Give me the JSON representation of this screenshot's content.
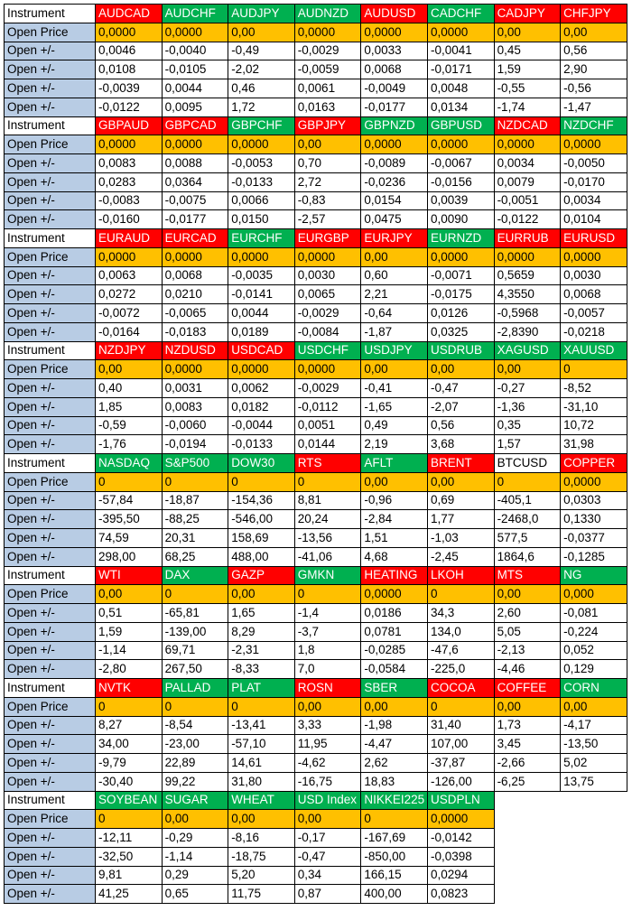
{
  "row_labels": {
    "instrument": "Instrument",
    "open_price": "Open Price",
    "open_delta": "Open +/-"
  },
  "colors": {
    "red": "#ff0000",
    "green": "#00b050",
    "white": "#ffffff",
    "label_blue": "#b8cce4",
    "price_orange": "#ffc000"
  },
  "blocks": [
    {
      "instruments": [
        {
          "name": "AUDCAD",
          "color": "red"
        },
        {
          "name": "AUDCHF",
          "color": "green"
        },
        {
          "name": "AUDJPY",
          "color": "green"
        },
        {
          "name": "AUDNZD",
          "color": "green"
        },
        {
          "name": "AUDUSD",
          "color": "red"
        },
        {
          "name": "CADCHF",
          "color": "green"
        },
        {
          "name": "CADJPY",
          "color": "red"
        },
        {
          "name": "CHFJPY",
          "color": "red"
        }
      ],
      "open_price": [
        "0,0000",
        "0,0000",
        "0,00",
        "0,0000",
        "0,0000",
        "0,0000",
        "0,00",
        "0,00"
      ],
      "deltas": [
        [
          "0,0046",
          "-0,0040",
          "-0,49",
          "-0,0029",
          "0,0033",
          "-0,0041",
          "0,45",
          "0,56"
        ],
        [
          "0,0108",
          "-0,0105",
          "-2,02",
          "-0,0059",
          "0,0068",
          "-0,0171",
          "1,59",
          "2,90"
        ],
        [
          "-0,0039",
          "0,0044",
          "0,46",
          "0,0061",
          "-0,0049",
          "0,0048",
          "-0,55",
          "-0,56"
        ],
        [
          "-0,0122",
          "0,0095",
          "1,72",
          "0,0163",
          "-0,0177",
          "0,0134",
          "-1,74",
          "-1,47"
        ]
      ]
    },
    {
      "instruments": [
        {
          "name": "GBPAUD",
          "color": "red"
        },
        {
          "name": "GBPCAD",
          "color": "red"
        },
        {
          "name": "GBPCHF",
          "color": "green"
        },
        {
          "name": "GBPJPY",
          "color": "red"
        },
        {
          "name": "GBPNZD",
          "color": "green"
        },
        {
          "name": "GBPUSD",
          "color": "green"
        },
        {
          "name": "NZDCAD",
          "color": "red"
        },
        {
          "name": "NZDCHF",
          "color": "green"
        }
      ],
      "open_price": [
        "0,0000",
        "0,0000",
        "0,0000",
        "0,00",
        "0,0000",
        "0,0000",
        "0,0000",
        "0,0000"
      ],
      "deltas": [
        [
          "0,0083",
          "0,0088",
          "-0,0053",
          "0,70",
          "-0,0089",
          "-0,0067",
          "0,0034",
          "-0,0050"
        ],
        [
          "0,0283",
          "0,0364",
          "-0,0133",
          "2,72",
          "-0,0236",
          "-0,0156",
          "0,0079",
          "-0,0170"
        ],
        [
          "-0,0083",
          "-0,0075",
          "0,0066",
          "-0,83",
          "0,0154",
          "0,0039",
          "-0,0051",
          "0,0034"
        ],
        [
          "-0,0160",
          "-0,0177",
          "0,0150",
          "-2,57",
          "0,0475",
          "0,0090",
          "-0,0122",
          "0,0104"
        ]
      ]
    },
    {
      "instruments": [
        {
          "name": "EURAUD",
          "color": "red"
        },
        {
          "name": "EURCAD",
          "color": "red"
        },
        {
          "name": "EURCHF",
          "color": "green"
        },
        {
          "name": "EURGBP",
          "color": "red"
        },
        {
          "name": "EURJPY",
          "color": "red"
        },
        {
          "name": "EURNZD",
          "color": "green"
        },
        {
          "name": "EURRUB",
          "color": "red"
        },
        {
          "name": "EURUSD",
          "color": "red"
        }
      ],
      "open_price": [
        "0,0000",
        "0,0000",
        "0,0000",
        "0,0000",
        "0,00",
        "0,0000",
        "0,0000",
        "0,0000"
      ],
      "deltas": [
        [
          "0,0063",
          "0,0068",
          "-0,0035",
          "0,0030",
          "0,60",
          "-0,0071",
          "0,5659",
          "0,0030"
        ],
        [
          "0,0272",
          "0,0210",
          "-0,0141",
          "0,0065",
          "2,21",
          "-0,0175",
          "4,3550",
          "0,0068"
        ],
        [
          "-0,0072",
          "-0,0065",
          "0,0044",
          "-0,0029",
          "-0,64",
          "0,0126",
          "-0,5968",
          "-0,0057"
        ],
        [
          "-0,0164",
          "-0,0183",
          "0,0189",
          "-0,0084",
          "-1,87",
          "0,0325",
          "-2,8390",
          "-0,0218"
        ]
      ]
    },
    {
      "instruments": [
        {
          "name": "NZDJPY",
          "color": "red"
        },
        {
          "name": "NZDUSD",
          "color": "red"
        },
        {
          "name": "USDCAD",
          "color": "red"
        },
        {
          "name": "USDCHF",
          "color": "green"
        },
        {
          "name": "USDJPY",
          "color": "green"
        },
        {
          "name": "USDRUB",
          "color": "green"
        },
        {
          "name": "XAGUSD",
          "color": "green"
        },
        {
          "name": "XAUUSD",
          "color": "green"
        }
      ],
      "open_price": [
        "0,00",
        "0,0000",
        "0,0000",
        "0,0000",
        "0,00",
        "0,00",
        "0,00",
        "0"
      ],
      "deltas": [
        [
          "0,40",
          "0,0031",
          "0,0062",
          "-0,0029",
          "-0,41",
          "-0,47",
          "-0,27",
          "-8,52"
        ],
        [
          "1,85",
          "0,0083",
          "0,0182",
          "-0,0112",
          "-1,65",
          "-2,07",
          "-1,36",
          "-31,10"
        ],
        [
          "-0,59",
          "-0,0060",
          "-0,0044",
          "0,0051",
          "0,49",
          "0,56",
          "0,35",
          "10,72"
        ],
        [
          "-1,76",
          "-0,0194",
          "-0,0133",
          "0,0144",
          "2,19",
          "3,68",
          "1,57",
          "31,98"
        ]
      ]
    },
    {
      "instruments": [
        {
          "name": "NASDAQ",
          "color": "green"
        },
        {
          "name": "S&P500",
          "color": "green"
        },
        {
          "name": "DOW30",
          "color": "green"
        },
        {
          "name": "RTS",
          "color": "red"
        },
        {
          "name": "AFLT",
          "color": "green"
        },
        {
          "name": "BRENT",
          "color": "red"
        },
        {
          "name": "BTCUSD",
          "color": "white"
        },
        {
          "name": "COPPER",
          "color": "red"
        }
      ],
      "open_price": [
        "0",
        "0",
        "0",
        "0",
        "0,00",
        "0,00",
        "0",
        "0,0000"
      ],
      "deltas": [
        [
          "-57,84",
          "-18,87",
          "-154,36",
          "8,81",
          "-0,96",
          "0,69",
          "-405,1",
          "0,0303"
        ],
        [
          "-395,50",
          "-88,25",
          "-546,00",
          "20,24",
          "-2,84",
          "1,77",
          "-2468,0",
          "0,1330"
        ],
        [
          "74,59",
          "20,31",
          "158,69",
          "-13,56",
          "1,51",
          "-1,03",
          "577,5",
          "-0,0377"
        ],
        [
          "298,00",
          "68,25",
          "488,00",
          "-41,06",
          "4,68",
          "-2,45",
          "1864,6",
          "-0,1285"
        ]
      ]
    },
    {
      "instruments": [
        {
          "name": "WTI",
          "color": "red"
        },
        {
          "name": "DAX",
          "color": "green"
        },
        {
          "name": "GAZP",
          "color": "red"
        },
        {
          "name": "GMKN",
          "color": "green"
        },
        {
          "name": "HEATING",
          "color": "red"
        },
        {
          "name": "LKOH",
          "color": "red"
        },
        {
          "name": "MTS",
          "color": "red"
        },
        {
          "name": "NG",
          "color": "green"
        }
      ],
      "open_price": [
        "0,00",
        "0",
        "0,00",
        "0",
        "0,0000",
        "0",
        "0,00",
        "0,000"
      ],
      "deltas": [
        [
          "0,51",
          "-65,81",
          "1,65",
          "-1,4",
          "0,0186",
          "34,3",
          "2,60",
          "-0,081"
        ],
        [
          "1,59",
          "-139,00",
          "8,29",
          "-3,7",
          "0,0781",
          "134,0",
          "5,05",
          "-0,224"
        ],
        [
          "-1,14",
          "69,71",
          "-2,31",
          "1,8",
          "-0,0285",
          "-47,6",
          "-2,13",
          "0,052"
        ],
        [
          "-2,80",
          "267,50",
          "-8,33",
          "7,0",
          "-0,0584",
          "-225,0",
          "-4,46",
          "0,129"
        ]
      ]
    },
    {
      "instruments": [
        {
          "name": "NVTK",
          "color": "red"
        },
        {
          "name": "PALLAD",
          "color": "green"
        },
        {
          "name": "PLAT",
          "color": "green"
        },
        {
          "name": "ROSN",
          "color": "red"
        },
        {
          "name": "SBER",
          "color": "green"
        },
        {
          "name": "COCOA",
          "color": "red"
        },
        {
          "name": "COFFEE",
          "color": "red"
        },
        {
          "name": "CORN",
          "color": "green"
        }
      ],
      "open_price": [
        "0",
        "0",
        "0",
        "0,00",
        "0,00",
        "0",
        "0,00",
        "0,00"
      ],
      "deltas": [
        [
          "8,27",
          "-8,54",
          "-13,41",
          "3,33",
          "-1,98",
          "31,40",
          "1,73",
          "-4,17"
        ],
        [
          "34,00",
          "-23,00",
          "-57,10",
          "11,95",
          "-4,47",
          "107,00",
          "3,45",
          "-13,50"
        ],
        [
          "-9,79",
          "22,89",
          "14,61",
          "-4,62",
          "2,62",
          "-37,87",
          "-2,66",
          "5,02"
        ],
        [
          "-30,40",
          "99,22",
          "31,80",
          "-16,75",
          "18,83",
          "-126,00",
          "-6,25",
          "13,75"
        ]
      ]
    },
    {
      "instruments": [
        {
          "name": "SOYBEAN",
          "color": "green"
        },
        {
          "name": "SUGAR",
          "color": "green"
        },
        {
          "name": "WHEAT",
          "color": "green"
        },
        {
          "name": "USD Index",
          "color": "green"
        },
        {
          "name": "NIKKEI225",
          "color": "green"
        },
        {
          "name": "USDPLN",
          "color": "green"
        }
      ],
      "open_price": [
        "0",
        "0,00",
        "0,00",
        "0,00",
        "0",
        "0,0000"
      ],
      "deltas": [
        [
          "-12,11",
          "-0,29",
          "-8,16",
          "-0,17",
          "-167,69",
          "-0,0142"
        ],
        [
          "-32,50",
          "-1,14",
          "-18,75",
          "-0,47",
          "-850,00",
          "-0,0398"
        ],
        [
          "9,81",
          "0,29",
          "5,20",
          "0,34",
          "166,15",
          "0,0294"
        ],
        [
          "41,25",
          "0,65",
          "11,75",
          "0,87",
          "400,00",
          "0,0823"
        ]
      ]
    }
  ]
}
